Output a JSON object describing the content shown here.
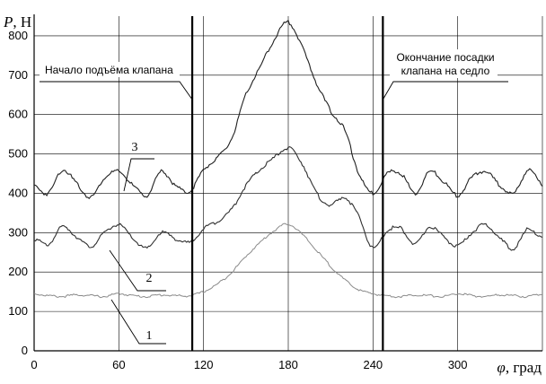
{
  "chart_data": {
    "type": "line",
    "ylabel_symbol": "P",
    "ylabel_unit": ", Н",
    "xlabel_symbol": "φ",
    "xlabel_unit": ", град",
    "xlim": [
      0,
      360
    ],
    "ylim": [
      0,
      850
    ],
    "x_ticks": [
      0,
      60,
      120,
      180,
      240,
      300
    ],
    "y_ticks": [
      0,
      100,
      200,
      300,
      400,
      500,
      600,
      700,
      800
    ],
    "grid": true,
    "vlines": [
      {
        "x": 112,
        "label": "Начало подъёма клапана"
      },
      {
        "x": 247,
        "label_lines": [
          "Окончание посадки",
          "клапана на седло"
        ]
      }
    ],
    "series": [
      {
        "name": "1",
        "color": "#8a8a8a",
        "x": [
          0,
          10,
          20,
          30,
          40,
          50,
          60,
          70,
          80,
          90,
          100,
          110,
          120,
          130,
          140,
          150,
          160,
          170,
          180,
          190,
          200,
          210,
          220,
          230,
          240,
          250,
          260,
          270,
          280,
          290,
          300,
          310,
          320,
          330,
          340,
          350,
          360
        ],
        "y": [
          145,
          140,
          138,
          142,
          140,
          138,
          145,
          140,
          138,
          142,
          140,
          140,
          150,
          170,
          200,
          240,
          275,
          305,
          322,
          295,
          255,
          215,
          180,
          155,
          145,
          140,
          138,
          142,
          140,
          138,
          145,
          140,
          138,
          142,
          140,
          138,
          145
        ]
      },
      {
        "name": "2",
        "color": "#303030",
        "x": [
          0,
          10,
          20,
          30,
          40,
          50,
          60,
          70,
          80,
          90,
          100,
          110,
          120,
          130,
          140,
          150,
          160,
          170,
          180,
          190,
          200,
          210,
          220,
          230,
          240,
          250,
          260,
          270,
          280,
          290,
          300,
          310,
          320,
          330,
          340,
          350,
          360
        ],
        "y": [
          285,
          270,
          315,
          290,
          265,
          300,
          320,
          285,
          260,
          300,
          285,
          275,
          310,
          330,
          360,
          420,
          460,
          490,
          515,
          475,
          400,
          370,
          390,
          340,
          260,
          305,
          310,
          270,
          315,
          290,
          265,
          300,
          320,
          285,
          260,
          310,
          285
        ]
      },
      {
        "name": "3",
        "color": "#202020",
        "x": [
          0,
          10,
          20,
          30,
          40,
          50,
          60,
          70,
          80,
          90,
          100,
          110,
          120,
          130,
          140,
          150,
          160,
          170,
          180,
          190,
          200,
          210,
          220,
          230,
          240,
          250,
          260,
          270,
          280,
          290,
          300,
          310,
          320,
          330,
          340,
          350,
          360
        ],
        "y": [
          420,
          400,
          460,
          425,
          390,
          440,
          455,
          420,
          395,
          455,
          420,
          405,
          460,
          490,
          540,
          650,
          720,
          790,
          835,
          770,
          680,
          610,
          560,
          450,
          400,
          450,
          450,
          400,
          455,
          430,
          395,
          440,
          455,
          420,
          400,
          460,
          420
        ]
      }
    ]
  }
}
